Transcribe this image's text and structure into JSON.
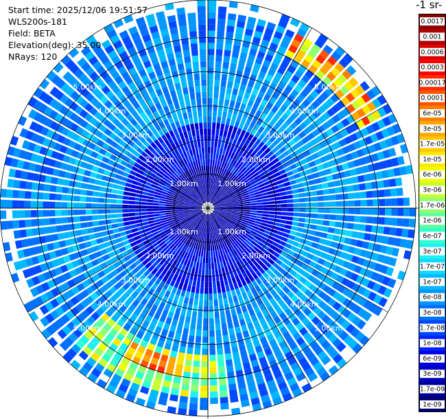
{
  "header": {
    "start_time": "Start time: 2025/12/06 19:51:57",
    "instrument": "WLS200s-181",
    "field": "Field: BETA",
    "elevation": "Elevation(deg): 35.00",
    "nrays": "NRays: 120"
  },
  "colorbar_title": "-1 sr-",
  "chart_data": {
    "type": "heatmap",
    "projection": "polar PPI",
    "field": "BETA",
    "n_rays": 120,
    "elevation_deg": 35.0,
    "range_rings_km": [
      1.0,
      2.0,
      3.0,
      4.0,
      5.0
    ],
    "ring_labels": [
      "1.00km",
      "2.00km",
      "3.00km",
      "4.00km",
      "5.00km"
    ],
    "max_range_km": 6.1,
    "colorbar": {
      "labels": [
        "0.0017",
        "0.001",
        "0.0006",
        "0.0003",
        "0.00017",
        "0.0001",
        "6e-05",
        "3e-05",
        "1.7e-05",
        "1e-05",
        "6e-06",
        "3e-06",
        "1.7e-06",
        "1e-06",
        "6e-07",
        "3e-07",
        "1.7e-07",
        "1e-07",
        "6e-08",
        "3e-08",
        "1.7e-08",
        "1e-08",
        "6e-09",
        "3e-09",
        "1.7e-09",
        "1e-09"
      ],
      "colors": [
        "#8b0000",
        "#b00000",
        "#d80000",
        "#ff0000",
        "#ff2a00",
        "#ff5500",
        "#ff7f00",
        "#ffa600",
        "#ffc800",
        "#ffe800",
        "#f0ff00",
        "#c8ff30",
        "#90ff70",
        "#60ffa0",
        "#30ffd0",
        "#20f0f0",
        "#10d8ff",
        "#00b8ff",
        "#0098ff",
        "#0070ff",
        "#0048ff",
        "#0020ff",
        "#0000e8",
        "#0000c0",
        "#000098",
        "#000070"
      ]
    },
    "colors": {
      "background": "#ffffff",
      "gate_separator": "#ffffff",
      "grid": "#000000",
      "ring_label": "#ffffff"
    }
  }
}
